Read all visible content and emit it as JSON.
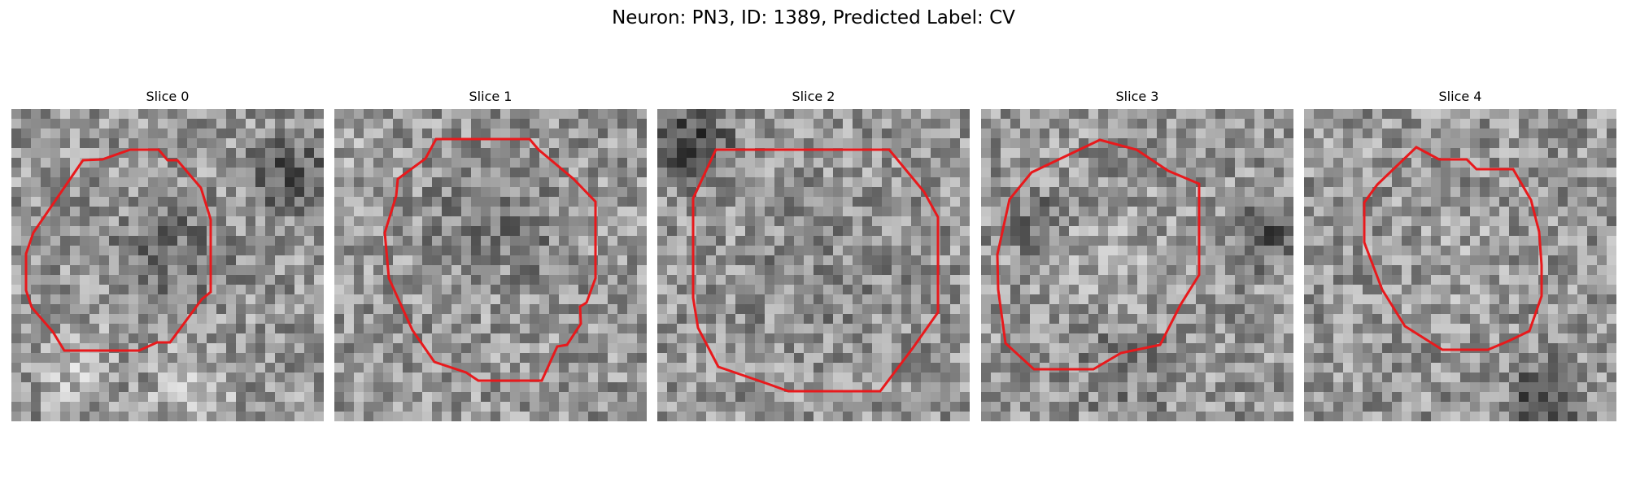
{
  "figure": {
    "title": "Neuron: PN3, ID: 1389, Predicted Label: CV"
  },
  "style": {
    "contour_color": "#e8191c",
    "image_colormap": "grayscale"
  },
  "panels": [
    {
      "title": "Slice 0"
    },
    {
      "title": "Slice 1"
    },
    {
      "title": "Slice 2"
    },
    {
      "title": "Slice 3"
    },
    {
      "title": "Slice 4"
    }
  ]
}
